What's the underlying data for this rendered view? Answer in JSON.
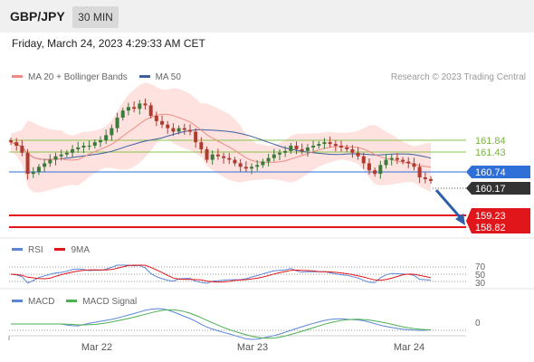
{
  "header": {
    "symbol": "GBP/JPY",
    "interval": "30 MIN",
    "datetime": "Friday, March 24, 2023 4:29:33 AM CET"
  },
  "legend": {
    "ma20": "MA 20 + Bollinger Bands",
    "ma50": "MA 50",
    "copyright": "Research © 2023 Trading Central",
    "rsi": "RSI",
    "rsi_ma": "9MA",
    "macd": "MACD",
    "macd_signal": "MACD Signal"
  },
  "colors": {
    "up": "#3a7a3a",
    "down": "#b03a2e",
    "ma20": "#f08a80",
    "ma50": "#3e5f9e",
    "bands_fill": "#fde2e0",
    "resistance": "#8bc34a",
    "pivot": "#2e6fd8",
    "support": "#e0161b",
    "current": "#333333",
    "rsi": "#5b86d6",
    "rsi_ma": "#e0161b",
    "macd": "#5b86d6",
    "macd_signal": "#4caf50"
  },
  "levels": {
    "resistance": [
      "161.84",
      "161.43"
    ],
    "pivot": "160.74",
    "current": "160.17",
    "support": [
      "159.23",
      "158.82"
    ]
  },
  "rsi_axis": [
    "70",
    "50",
    "30"
  ],
  "macd_axis": [
    "0"
  ],
  "x_axis": [
    "Mar 22",
    "Mar 23",
    "Mar 24"
  ],
  "chart_data": {
    "type": "candlestick",
    "ylim": [
      158.5,
      162.8
    ],
    "closes": [
      161.2,
      161.1,
      160.9,
      160.3,
      160.35,
      160.5,
      160.6,
      160.7,
      160.8,
      160.85,
      160.9,
      161.0,
      161.05,
      161.1,
      161.1,
      161.2,
      161.25,
      161.4,
      161.6,
      161.9,
      162.1,
      162.2,
      162.15,
      162.3,
      162.25,
      161.95,
      161.8,
      161.7,
      161.6,
      161.5,
      161.6,
      161.55,
      161.5,
      161.2,
      161.0,
      160.7,
      160.85,
      160.8,
      160.75,
      160.7,
      160.6,
      160.5,
      160.45,
      160.5,
      160.55,
      160.65,
      160.75,
      160.85,
      160.9,
      160.95,
      161.1,
      161.0,
      160.95,
      161.05,
      161.1,
      161.15,
      161.2,
      161.15,
      161.1,
      161.05,
      161.0,
      160.9,
      160.8,
      160.6,
      160.4,
      160.3,
      160.55,
      160.7,
      160.75,
      160.7,
      160.65,
      160.6,
      160.5,
      160.2,
      160.15,
      160.1
    ]
  }
}
